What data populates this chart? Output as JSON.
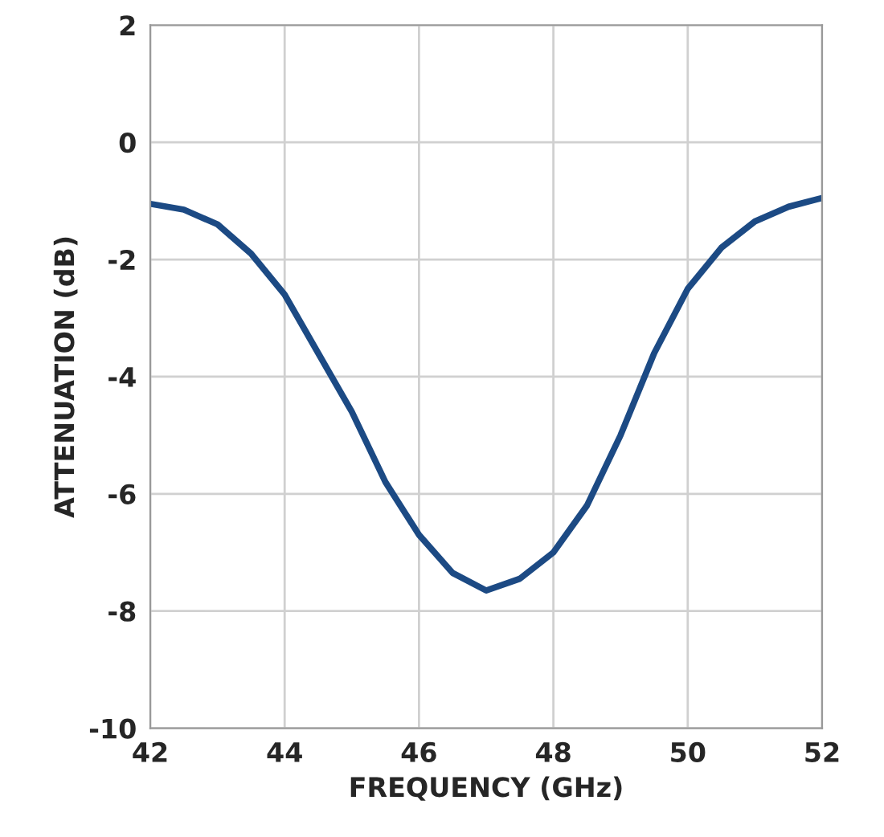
{
  "chart_data": {
    "type": "line",
    "xlabel": "FREQUENCY (GHz)",
    "ylabel": "ATTENUATION (dB)",
    "x": [
      42,
      42.5,
      43,
      43.5,
      44,
      44.5,
      45,
      45.5,
      46,
      46.5,
      47,
      47.5,
      48,
      48.5,
      49,
      49.5,
      50,
      50.5,
      51,
      51.5,
      52
    ],
    "series": [
      {
        "color": "#1c4a84",
        "values": [
          -1.05,
          -1.15,
          -1.4,
          -1.9,
          -2.6,
          -3.6,
          -4.6,
          -5.8,
          -6.7,
          -7.35,
          -7.65,
          -7.45,
          -7.0,
          -6.2,
          -5.0,
          -3.6,
          -2.5,
          -1.8,
          -1.35,
          -1.1,
          -0.95
        ]
      }
    ],
    "xlim": [
      42,
      52
    ],
    "xticks": [
      42,
      44,
      46,
      48,
      50,
      52
    ],
    "ylim": [
      -10,
      2
    ],
    "yticks": [
      -10,
      -8,
      -6,
      -4,
      -2,
      0,
      2
    ],
    "grid": true,
    "line_style": "solid",
    "marker": "none"
  }
}
